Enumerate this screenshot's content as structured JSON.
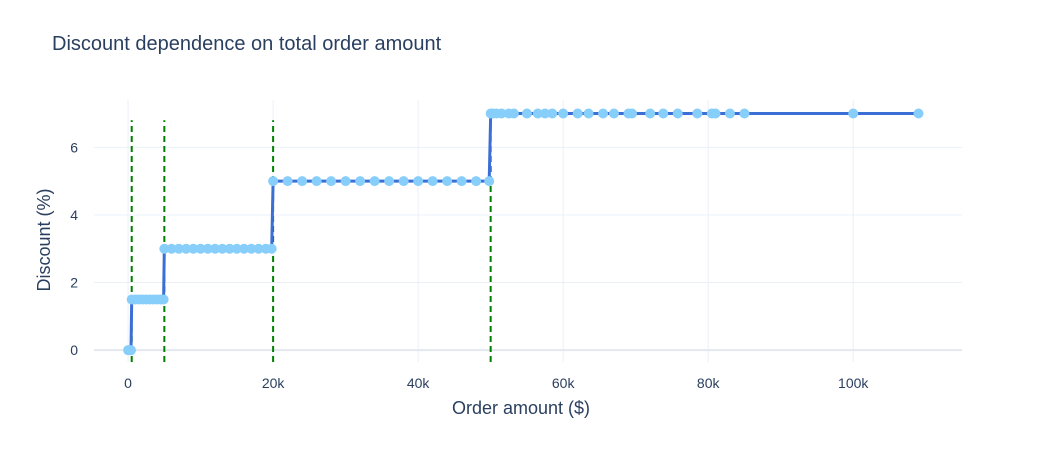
{
  "chart_data": {
    "type": "line",
    "title": "Discount dependence on total order amount",
    "xlabel": "Order amount ($)",
    "ylabel": "Discount (%)",
    "xlim": [
      -4700,
      115000
    ],
    "ylim": [
      -0.35,
      7.4
    ],
    "x_ticks": [
      0,
      20000,
      40000,
      60000,
      80000,
      100000
    ],
    "x_tick_labels": [
      "0",
      "20k",
      "40k",
      "60k",
      "80k",
      "100k"
    ],
    "y_ticks": [
      0,
      2,
      4,
      6
    ],
    "y_tick_labels": [
      "0",
      "2",
      "4",
      "6"
    ],
    "grid": true,
    "line_color": "#3b6fd6",
    "marker_color": "#87cefa",
    "threshold_color": "#008000",
    "thresholds": [
      500,
      5000,
      20000,
      50000
    ],
    "threshold_top": 6.8,
    "series": [
      {
        "x": [
          0,
          200,
          400,
          500,
          1000,
          1500,
          2000,
          2500,
          3000,
          3500,
          4000,
          4500,
          4900,
          5000,
          6000,
          7000,
          8000,
          9000,
          10000,
          11000,
          12000,
          13000,
          14000,
          15000,
          16000,
          17000,
          18000,
          19000,
          19800,
          20000,
          22000,
          24000,
          26000,
          28000,
          30000,
          32000,
          34000,
          36000,
          38000,
          40000,
          42000,
          44000,
          46000,
          48000,
          49800,
          50000,
          50300,
          50800,
          51500,
          52500,
          53200,
          55000,
          56500,
          57500,
          58500,
          60000,
          62000,
          63500,
          65500,
          67000,
          69000,
          69500,
          72000,
          73800,
          75800,
          78500,
          80500,
          81000,
          83000,
          85000,
          100000,
          109000
        ],
        "y": [
          0,
          0,
          0,
          1.5,
          1.5,
          1.5,
          1.5,
          1.5,
          1.5,
          1.5,
          1.5,
          1.5,
          1.5,
          3,
          3,
          3,
          3,
          3,
          3,
          3,
          3,
          3,
          3,
          3,
          3,
          3,
          3,
          3,
          3,
          5,
          5,
          5,
          5,
          5,
          5,
          5,
          5,
          5,
          5,
          5,
          5,
          5,
          5,
          5,
          5,
          7,
          7,
          7,
          7,
          7,
          7,
          7,
          7,
          7,
          7,
          7,
          7,
          7,
          7,
          7,
          7,
          7,
          7,
          7,
          7,
          7,
          7,
          7,
          7,
          7,
          7,
          7
        ]
      }
    ]
  }
}
